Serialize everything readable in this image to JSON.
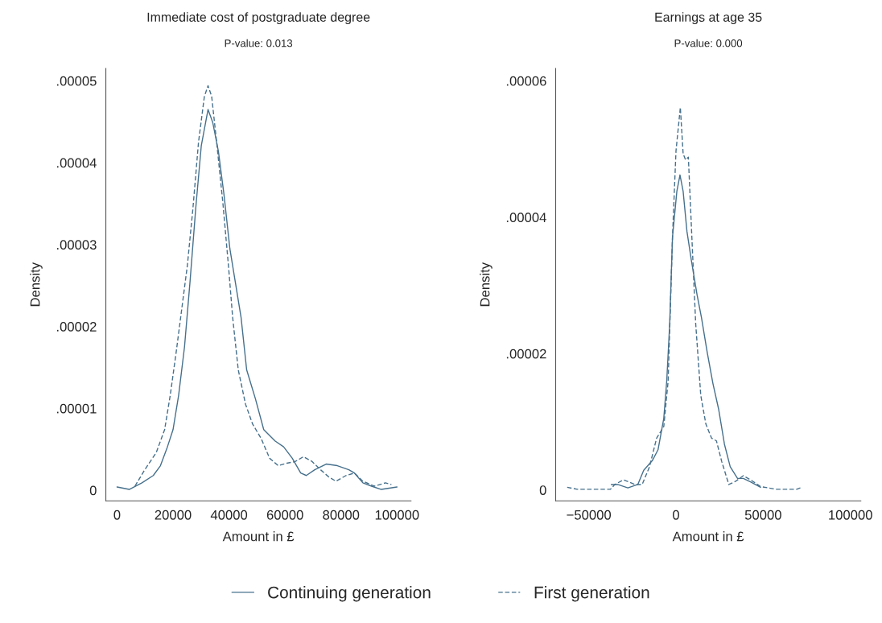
{
  "chart_data": [
    {
      "type": "line",
      "title": "Immediate cost of postgraduate degree",
      "subtitle": "P-value: 0.013",
      "xlabel": "Amount in £",
      "ylabel": "Density",
      "xlim": [
        -4000,
        105000
      ],
      "ylim": [
        -1.3e-06,
        5.15e-05
      ],
      "xticks": [
        0,
        20000,
        40000,
        60000,
        80000,
        100000
      ],
      "yticks": [
        0,
        {
          "value": 1e-05,
          "label": ".00001"
        },
        {
          "value": 2e-05,
          "label": ".00002"
        },
        {
          "value": 3e-05,
          "label": ".00003"
        },
        {
          "value": 4e-05,
          "label": ".00004"
        },
        {
          "value": 5e-05,
          "label": ".00005"
        }
      ],
      "grid": false,
      "legend": "bottom",
      "series": [
        {
          "name": "Continuing generation",
          "color": "#46708c",
          "line_style": "solid",
          "x": [
            0,
            4350,
            8900,
            12950,
            15500,
            18000,
            20000,
            22000,
            24100,
            26100,
            28100,
            30100,
            32500,
            34200,
            36200,
            38200,
            40300,
            42300,
            44300,
            46300,
            49400,
            52400,
            56500,
            59500,
            62600,
            65600,
            67600,
            70600,
            74700,
            78700,
            82800,
            84800,
            87800,
            90900,
            94400,
            100000
          ],
          "values": [
            4e-07,
            1e-07,
            9e-07,
            1.8e-06,
            3e-06,
            5.3e-06,
            7.4e-06,
            1.16e-05,
            1.75e-05,
            2.56e-05,
            3.44e-05,
            4.21e-05,
            4.65e-05,
            4.49e-05,
            4.14e-05,
            3.61e-05,
            2.95e-05,
            2.53e-05,
            2.11e-05,
            1.47e-05,
            1.12e-05,
            7.4e-06,
            6e-06,
            5.3e-06,
            3.9e-06,
            2.1e-06,
            1.8e-06,
            2.5e-06,
            3.2e-06,
            3e-06,
            2.5e-06,
            2.1e-06,
            9e-07,
            5e-07,
            1e-07,
            4e-07
          ]
        },
        {
          "name": "First generation",
          "color": "#46708c",
          "line_style": "dashed",
          "x": [
            6400,
            9900,
            14000,
            17000,
            19000,
            21100,
            23100,
            25100,
            27100,
            29100,
            31200,
            32500,
            33800,
            35700,
            37800,
            39800,
            41300,
            43300,
            45900,
            48400,
            51500,
            54500,
            57600,
            60600,
            63600,
            66600,
            69700,
            72700,
            75700,
            78200,
            81800,
            84800,
            87800,
            91900,
            95900,
            98000
          ],
          "values": [
            5e-07,
            2.5e-06,
            4.6e-06,
            7.4e-06,
            1.16e-05,
            1.68e-05,
            2.21e-05,
            2.74e-05,
            3.44e-05,
            4.25e-05,
            4.81e-05,
            4.94e-05,
            4.81e-05,
            4.21e-05,
            3.51e-05,
            2.74e-05,
            2.11e-05,
            1.47e-05,
            1.05e-05,
            8.1e-06,
            6.3e-06,
            3.9e-06,
            3e-06,
            3.3e-06,
            3.5e-06,
            4.1e-06,
            3.5e-06,
            2.5e-06,
            1.6e-06,
            1.1e-06,
            1.8e-06,
            2.1e-06,
            1.1e-06,
            5e-07,
            9e-07,
            7e-07
          ]
        }
      ]
    },
    {
      "type": "line",
      "title": "Earnings at age 35",
      "subtitle": "P-value: 0.000",
      "xlabel": "Amount in £",
      "ylabel": "Density",
      "xlim": [
        -69000,
        106000
      ],
      "ylim": [
        -1.6e-06,
        6.18e-05
      ],
      "xticks": [
        -50000,
        0,
        50000,
        100000
      ],
      "yticks": [
        0,
        {
          "value": 2e-05,
          "label": ".00002"
        },
        {
          "value": 4e-05,
          "label": ".00004"
        },
        {
          "value": 6e-05,
          "label": ".00006"
        }
      ],
      "grid": false,
      "series": [
        {
          "color": "#46708c",
          "line_style": "solid",
          "x": [
            -37100,
            -33400,
            -27600,
            -21900,
            -18500,
            -13600,
            -10300,
            -7000,
            -5300,
            -3600,
            -2000,
            500,
            2300,
            4100,
            6300,
            8800,
            12100,
            14600,
            17900,
            21200,
            24500,
            27800,
            31100,
            35300,
            38600,
            42700,
            48500
          ],
          "values": [
            8e-07,
            8e-07,
            3e-07,
            8e-07,
            2.9e-06,
            4.3e-06,
            5.9e-06,
            1.05e-05,
            1.6e-05,
            2.44e-05,
            3.71e-05,
            4.38e-05,
            4.62e-05,
            4.38e-05,
            3.79e-05,
            3.37e-05,
            2.86e-05,
            2.53e-05,
            2.02e-05,
            1.56e-05,
            1.18e-05,
            6.7e-06,
            3.4e-06,
            1.7e-06,
            1.7e-06,
            1.2e-06,
            4e-07
          ]
        },
        {
          "color": "#46708c",
          "line_style": "dashed",
          "x": [
            -62400,
            -56600,
            -37600,
            -35100,
            -30100,
            -23500,
            -19400,
            -15200,
            -11100,
            -7000,
            -4500,
            -2000,
            0,
            2500,
            4100,
            5500,
            7100,
            9100,
            11300,
            14200,
            17100,
            20400,
            23200,
            26200,
            30300,
            34400,
            38600,
            42700,
            48500,
            57600,
            69200,
            72200
          ],
          "values": [
            4e-07,
            1e-07,
            1e-07,
            8e-07,
            1.5e-06,
            8e-07,
            8e-07,
            3.4e-06,
            7.6e-06,
            9.3e-06,
            1.6e-05,
            3.71e-05,
            4.97e-05,
            5.61e-05,
            4.93e-05,
            4.84e-05,
            4.88e-05,
            3.71e-05,
            2.44e-05,
            1.39e-05,
            9.7e-06,
            7.6e-06,
            7.2e-06,
            4.2e-06,
            8e-07,
            1.3e-06,
            2.1e-06,
            1.5e-06,
            5e-07,
            1e-07,
            1e-07,
            4e-07
          ]
        }
      ]
    }
  ]
}
